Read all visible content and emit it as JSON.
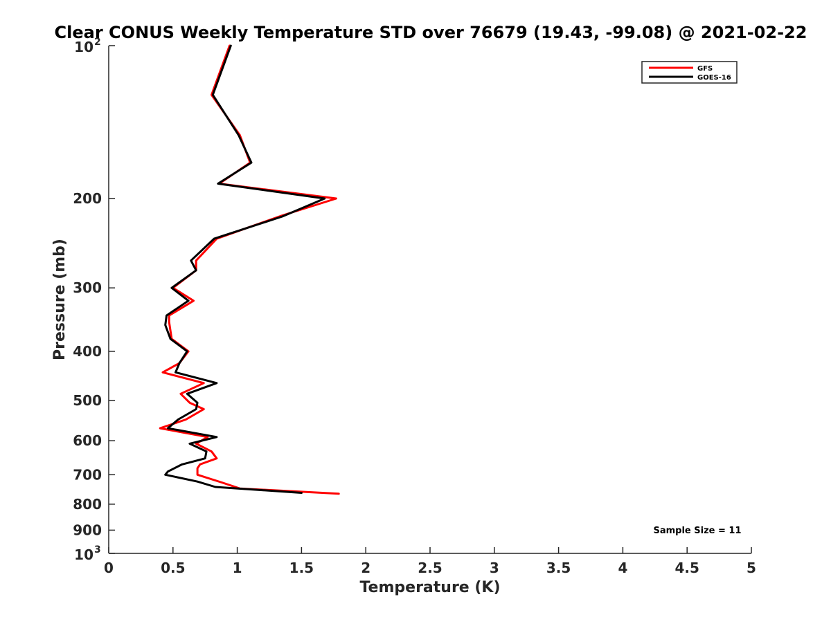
{
  "chart_data": {
    "type": "line",
    "title": "Clear CONUS Weekly Temperature STD over 76679 (19.43, -99.08) @ 2021-02-22",
    "xlabel": "Temperature (K)",
    "ylabel": "Pressure (mb)",
    "xlim": [
      0,
      5
    ],
    "ylim": [
      100,
      1000
    ],
    "y_scale": "log",
    "y_reversed": true,
    "grid": false,
    "legend_position": "top-right",
    "x_ticks": [
      "0",
      "0.5",
      "1",
      "1.5",
      "2",
      "2.5",
      "3",
      "3.5",
      "4",
      "4.5",
      "5"
    ],
    "y_ticks": [
      {
        "value": 100,
        "base": "10",
        "exp": "2"
      },
      {
        "value": 200,
        "label": "200"
      },
      {
        "value": 300,
        "label": "300"
      },
      {
        "value": 400,
        "label": "400"
      },
      {
        "value": 500,
        "label": "500"
      },
      {
        "value": 600,
        "label": "600"
      },
      {
        "value": 700,
        "label": "700"
      },
      {
        "value": 800,
        "label": "800"
      },
      {
        "value": 900,
        "label": "900"
      },
      {
        "value": 1000,
        "base": "10",
        "exp": "3"
      }
    ],
    "annotation": "Sample Size = 11",
    "series": [
      {
        "name": "GFS",
        "color": "#ff0000",
        "points": [
          [
            0.94,
            100
          ],
          [
            0.8,
            125
          ],
          [
            1.02,
            150
          ],
          [
            1.1,
            170
          ],
          [
            0.86,
            187
          ],
          [
            1.77,
            200
          ],
          [
            1.35,
            216
          ],
          [
            0.84,
            240
          ],
          [
            0.68,
            265
          ],
          [
            0.68,
            277
          ],
          [
            0.5,
            300
          ],
          [
            0.66,
            318
          ],
          [
            0.47,
            340
          ],
          [
            0.47,
            350
          ],
          [
            0.49,
            378
          ],
          [
            0.62,
            400
          ],
          [
            0.55,
            422
          ],
          [
            0.42,
            440
          ],
          [
            0.74,
            462
          ],
          [
            0.56,
            485
          ],
          [
            0.63,
            505
          ],
          [
            0.74,
            520
          ],
          [
            0.6,
            545
          ],
          [
            0.4,
            567
          ],
          [
            0.77,
            590
          ],
          [
            0.68,
            608
          ],
          [
            0.8,
            630
          ],
          [
            0.84,
            650
          ],
          [
            0.71,
            668
          ],
          [
            0.69,
            680
          ],
          [
            0.69,
            700
          ],
          [
            0.88,
            725
          ],
          [
            1.02,
            745
          ],
          [
            1.79,
            763
          ]
        ]
      },
      {
        "name": "GOES-16",
        "color": "#000000",
        "points": [
          [
            0.95,
            100
          ],
          [
            0.81,
            125
          ],
          [
            1.01,
            150
          ],
          [
            1.11,
            170
          ],
          [
            0.85,
            187
          ],
          [
            1.68,
            200
          ],
          [
            1.35,
            217
          ],
          [
            0.82,
            240
          ],
          [
            0.64,
            265
          ],
          [
            0.68,
            277
          ],
          [
            0.49,
            300
          ],
          [
            0.62,
            318
          ],
          [
            0.45,
            340
          ],
          [
            0.44,
            355
          ],
          [
            0.48,
            378
          ],
          [
            0.61,
            400
          ],
          [
            0.55,
            422
          ],
          [
            0.52,
            440
          ],
          [
            0.84,
            462
          ],
          [
            0.61,
            485
          ],
          [
            0.69,
            505
          ],
          [
            0.68,
            520
          ],
          [
            0.54,
            545
          ],
          [
            0.46,
            567
          ],
          [
            0.84,
            590
          ],
          [
            0.63,
            608
          ],
          [
            0.76,
            630
          ],
          [
            0.75,
            650
          ],
          [
            0.57,
            668
          ],
          [
            0.46,
            690
          ],
          [
            0.44,
            700
          ],
          [
            0.69,
            722
          ],
          [
            0.83,
            740
          ],
          [
            1.5,
            760
          ]
        ]
      }
    ]
  }
}
